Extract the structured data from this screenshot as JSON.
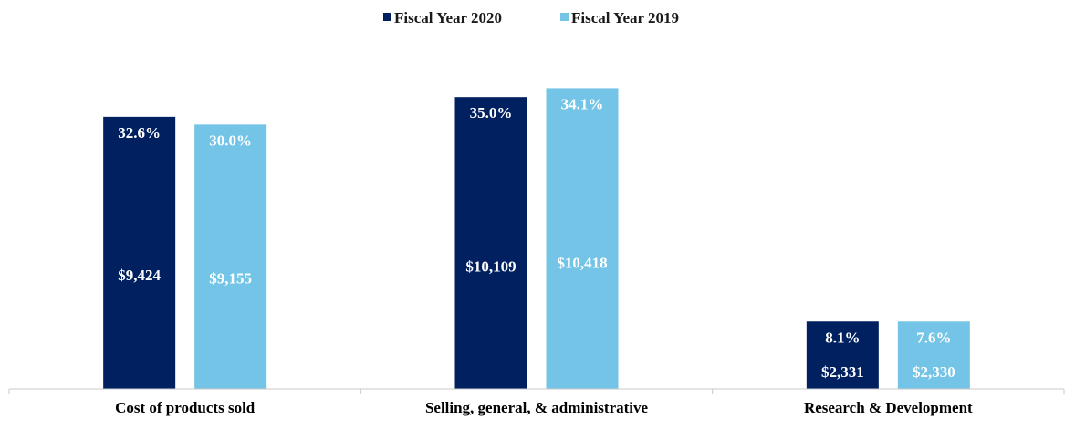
{
  "chart_data": {
    "type": "bar",
    "title": "",
    "xlabel": "",
    "ylabel": "",
    "ylim": [
      0,
      11000
    ],
    "grid": false,
    "legend_position": "top-center",
    "categories": [
      "Cost of products sold",
      "Selling, general, & administrative",
      "Research & Development"
    ],
    "series": [
      {
        "name": "Fiscal Year 2020",
        "color": "#002060",
        "values": [
          9424,
          10109,
          2331
        ],
        "value_labels": [
          "$9,424",
          "$10,109",
          "$2,331"
        ],
        "percent_labels": [
          "32.6%",
          "35.0%",
          "8.1%"
        ]
      },
      {
        "name": "Fiscal Year 2019",
        "color": "#73C4E6",
        "values": [
          9155,
          10418,
          2330
        ],
        "value_labels": [
          "$9,155",
          "$10,418",
          "$2,330"
        ],
        "percent_labels": [
          "30.0%",
          "34.1%",
          "7.6%"
        ]
      }
    ]
  }
}
